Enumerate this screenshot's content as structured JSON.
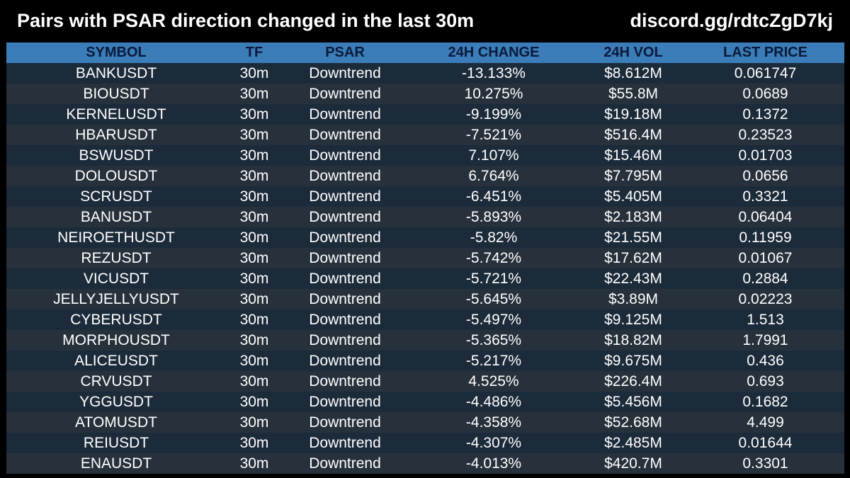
{
  "header": {
    "title": "Pairs with PSAR direction changed in the last 30m",
    "link": "discord.gg/rdtcZgD7kj"
  },
  "table": {
    "columns": [
      "SYMBOL",
      "TF",
      "PSAR",
      "24H CHANGE",
      "24H VOL",
      "LAST PRICE"
    ],
    "rows": [
      [
        "BANKUSDT",
        "30m",
        "Downtrend",
        "-13.133%",
        "$8.612M",
        "0.061747"
      ],
      [
        "BIOUSDT",
        "30m",
        "Downtrend",
        "10.275%",
        "$55.8M",
        "0.0689"
      ],
      [
        "KERNELUSDT",
        "30m",
        "Downtrend",
        "-9.199%",
        "$19.18M",
        "0.1372"
      ],
      [
        "HBARUSDT",
        "30m",
        "Downtrend",
        "-7.521%",
        "$516.4M",
        "0.23523"
      ],
      [
        "BSWUSDT",
        "30m",
        "Downtrend",
        "7.107%",
        "$15.46M",
        "0.01703"
      ],
      [
        "DOLOUSDT",
        "30m",
        "Downtrend",
        "6.764%",
        "$7.795M",
        "0.0656"
      ],
      [
        "SCRUSDT",
        "30m",
        "Downtrend",
        "-6.451%",
        "$5.405M",
        "0.3321"
      ],
      [
        "BANUSDT",
        "30m",
        "Downtrend",
        "-5.893%",
        "$2.183M",
        "0.06404"
      ],
      [
        "NEIROETHUSDT",
        "30m",
        "Downtrend",
        "-5.82%",
        "$21.55M",
        "0.11959"
      ],
      [
        "REZUSDT",
        "30m",
        "Downtrend",
        "-5.742%",
        "$17.62M",
        "0.01067"
      ],
      [
        "VICUSDT",
        "30m",
        "Downtrend",
        "-5.721%",
        "$22.43M",
        "0.2884"
      ],
      [
        "JELLYJELLYUSDT",
        "30m",
        "Downtrend",
        "-5.645%",
        "$3.89M",
        "0.02223"
      ],
      [
        "CYBERUSDT",
        "30m",
        "Downtrend",
        "-5.497%",
        "$9.125M",
        "1.513"
      ],
      [
        "MORPHOUSDT",
        "30m",
        "Downtrend",
        "-5.365%",
        "$18.82M",
        "1.7991"
      ],
      [
        "ALICEUSDT",
        "30m",
        "Downtrend",
        "-5.217%",
        "$9.675M",
        "0.436"
      ],
      [
        "CRVUSDT",
        "30m",
        "Downtrend",
        "4.525%",
        "$226.4M",
        "0.693"
      ],
      [
        "YGGUSDT",
        "30m",
        "Downtrend",
        "-4.486%",
        "$5.456M",
        "0.1682"
      ],
      [
        "ATOMUSDT",
        "30m",
        "Downtrend",
        "-4.358%",
        "$52.68M",
        "4.499"
      ],
      [
        "REIUSDT",
        "30m",
        "Downtrend",
        "-4.307%",
        "$2.485M",
        "0.01644"
      ],
      [
        "ENAUSDT",
        "30m",
        "Downtrend",
        "-4.013%",
        "$420.7M",
        "0.3301"
      ]
    ]
  },
  "colors": {
    "background": "#000000",
    "header_row": "#3a7db8",
    "header_text": "#0b1a3a",
    "row_odd": "#1c2b3a",
    "row_even": "#27313b",
    "text": "#ffffff"
  }
}
